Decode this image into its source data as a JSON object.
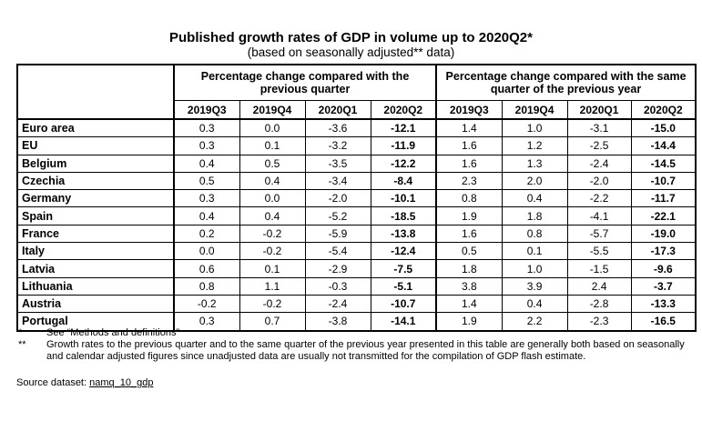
{
  "title": "Published growth rates of GDP in volume up to 2020Q2*",
  "subtitle": "(based on seasonally adjusted** data)",
  "table": {
    "group_headers": [
      "Percentage change compared with the previous quarter",
      "Percentage change compared with the same quarter of the previous year"
    ],
    "quarters": [
      "2019Q3",
      "2019Q4",
      "2020Q1",
      "2020Q2",
      "2019Q3",
      "2019Q4",
      "2020Q1",
      "2020Q2"
    ],
    "rows": [
      {
        "country": "Euro area",
        "values": [
          "0.3",
          "0.0",
          "-3.6",
          "-12.1",
          "1.4",
          "1.0",
          "-3.1",
          "-15.0"
        ]
      },
      {
        "country": "EU",
        "values": [
          "0.3",
          "0.1",
          "-3.2",
          "-11.9",
          "1.6",
          "1.2",
          "-2.5",
          "-14.4"
        ]
      },
      {
        "country": "Belgium",
        "values": [
          "0.4",
          "0.5",
          "-3.5",
          "-12.2",
          "1.6",
          "1.3",
          "-2.4",
          "-14.5"
        ]
      },
      {
        "country": "Czechia",
        "values": [
          "0.5",
          "0.4",
          "-3.4",
          "-8.4",
          "2.3",
          "2.0",
          "-2.0",
          "-10.7"
        ]
      },
      {
        "country": "Germany",
        "values": [
          "0.3",
          "0.0",
          "-2.0",
          "-10.1",
          "0.8",
          "0.4",
          "-2.2",
          "-11.7"
        ]
      },
      {
        "country": "Spain",
        "values": [
          "0.4",
          "0.4",
          "-5.2",
          "-18.5",
          "1.9",
          "1.8",
          "-4.1",
          "-22.1"
        ]
      },
      {
        "country": "France",
        "values": [
          "0.2",
          "-0.2",
          "-5.9",
          "-13.8",
          "1.6",
          "0.8",
          "-5.7",
          "-19.0"
        ]
      },
      {
        "country": "Italy",
        "values": [
          "0.0",
          "-0.2",
          "-5.4",
          "-12.4",
          "0.5",
          "0.1",
          "-5.5",
          "-17.3"
        ]
      },
      {
        "country": "Latvia",
        "values": [
          "0.6",
          "0.1",
          "-2.9",
          "-7.5",
          "1.8",
          "1.0",
          "-1.5",
          "-9.6"
        ]
      },
      {
        "country": "Lithuania",
        "values": [
          "0.8",
          "1.1",
          "-0.3",
          "-5.1",
          "3.8",
          "3.9",
          "2.4",
          "-3.7"
        ]
      },
      {
        "country": "Austria",
        "values": [
          "-0.2",
          "-0.2",
          "-2.4",
          "-10.7",
          "1.4",
          "0.4",
          "-2.8",
          "-13.3"
        ]
      },
      {
        "country": "Portugal",
        "values": [
          "0.3",
          "0.7",
          "-3.8",
          "-14.1",
          "1.9",
          "2.2",
          "-2.3",
          "-16.5"
        ]
      }
    ]
  },
  "notes": [
    {
      "mark": "*",
      "text": "See “Methods and definitions”"
    },
    {
      "mark": "**",
      "text": "Growth rates to the previous quarter and to the same quarter of the previous year presented in this table are generally both based on seasonally and calendar adjusted figures since unadjusted data are usually not transmitted for the compilation of GDP flash estimate."
    }
  ],
  "source": {
    "label": "Source dataset:",
    "link_text": "namq_10_gdp"
  }
}
